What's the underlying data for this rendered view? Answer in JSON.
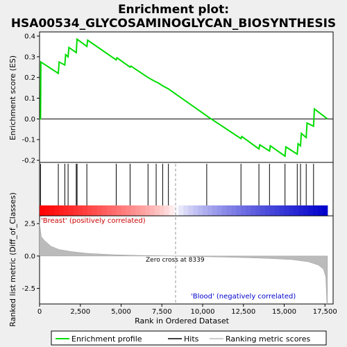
{
  "chart_data": {
    "type": "line",
    "title_line1": "Enrichment plot:",
    "title_line2": "HSA00534_GLYCOSAMINOGLYCAN_BIOSYNTHESIS",
    "top_panel": {
      "ylabel": "Enrichment score (ES)",
      "ylim": [
        -0.21,
        0.42
      ],
      "yticks": [
        -0.2,
        -0.1,
        0.0,
        0.1,
        0.2,
        0.3,
        0.4
      ],
      "ytick_labels": [
        "-0.2",
        "-0.1",
        "0.0",
        "0.1",
        "0.2",
        "0.3",
        "0.4"
      ],
      "series_name": "Enrichment profile",
      "color": "#00dd00",
      "es_points": [
        [
          0,
          0.0
        ],
        [
          60,
          0.0
        ],
        [
          80,
          0.275
        ],
        [
          1150,
          0.22
        ],
        [
          1200,
          0.275
        ],
        [
          1550,
          0.26
        ],
        [
          1600,
          0.31
        ],
        [
          1750,
          0.3
        ],
        [
          1800,
          0.345
        ],
        [
          2250,
          0.32
        ],
        [
          2300,
          0.385
        ],
        [
          2900,
          0.35
        ],
        [
          2950,
          0.38
        ],
        [
          4700,
          0.285
        ],
        [
          4750,
          0.295
        ],
        [
          5550,
          0.25
        ],
        [
          5600,
          0.255
        ],
        [
          6650,
          0.2
        ],
        [
          7100,
          0.18
        ],
        [
          7250,
          0.175
        ],
        [
          7550,
          0.16
        ],
        [
          7900,
          0.145
        ],
        [
          10250,
          0.015
        ],
        [
          10300,
          0.012
        ],
        [
          12350,
          -0.095
        ],
        [
          12400,
          -0.085
        ],
        [
          13450,
          -0.145
        ],
        [
          13500,
          -0.125
        ],
        [
          14100,
          -0.155
        ],
        [
          14150,
          -0.13
        ],
        [
          15050,
          -0.18
        ],
        [
          15100,
          -0.135
        ],
        [
          15800,
          -0.17
        ],
        [
          15850,
          -0.12
        ],
        [
          16000,
          -0.13
        ],
        [
          16050,
          -0.07
        ],
        [
          16350,
          -0.09
        ],
        [
          16400,
          -0.02
        ],
        [
          16800,
          -0.035
        ],
        [
          16850,
          0.048
        ],
        [
          17650,
          0.0
        ]
      ]
    },
    "hits": [
      60,
      1150,
      1550,
      1750,
      2250,
      2300,
      2900,
      4700,
      5550,
      6650,
      7150,
      7550,
      7900,
      10250,
      12350,
      13450,
      14100,
      15050,
      15800,
      16000,
      16350,
      16800
    ],
    "bottom_panel": {
      "ylabel": "Ranked list metric (Diff_of_Classes)",
      "ylim": [
        -3.7,
        3.1
      ],
      "yticks": [
        -2.5,
        0.0,
        2.5
      ],
      "ytick_labels": [
        "-2.5",
        "0.0",
        "2.5"
      ],
      "metric_points": [
        [
          0,
          2.6
        ],
        [
          100,
          1.5
        ],
        [
          300,
          1.2
        ],
        [
          700,
          0.75
        ],
        [
          1200,
          0.5
        ],
        [
          2000,
          0.33
        ],
        [
          3000,
          0.2
        ],
        [
          4500,
          0.1
        ],
        [
          6000,
          0.05
        ],
        [
          8339,
          0.0
        ],
        [
          10000,
          -0.05
        ],
        [
          12000,
          -0.1
        ],
        [
          14000,
          -0.18
        ],
        [
          15500,
          -0.28
        ],
        [
          16500,
          -0.45
        ],
        [
          17100,
          -0.7
        ],
        [
          17400,
          -1.0
        ],
        [
          17550,
          -1.6
        ],
        [
          17620,
          -3.7
        ],
        [
          17650,
          -3.7
        ]
      ]
    },
    "xlabel": "Rank in Ordered Dataset",
    "xlim": [
      0,
      18000
    ],
    "xticks": [
      0,
      2500,
      5000,
      7500,
      10000,
      12500,
      15000,
      17500
    ],
    "xtick_labels": [
      "0",
      "2,500",
      "5,000",
      "7,500",
      "10,000",
      "12,500",
      "15,000",
      "17,500"
    ],
    "n_genes": 17650,
    "zero_cross": 8339,
    "annotations": {
      "positive": "'Breast' (positively correlated)",
      "negative": "'Blood' (negatively correlated)",
      "zero_cross": "Zero cross at 8339"
    },
    "legend": [
      "Enrichment profile",
      "Hits",
      "Ranking metric scores"
    ],
    "colors": {
      "enrichment_line": "#00dd00",
      "hits": "#000000",
      "metric_fill": "#bbbbbb",
      "red_strong": "#ff0000",
      "blue_strong": "#0000cc"
    }
  }
}
